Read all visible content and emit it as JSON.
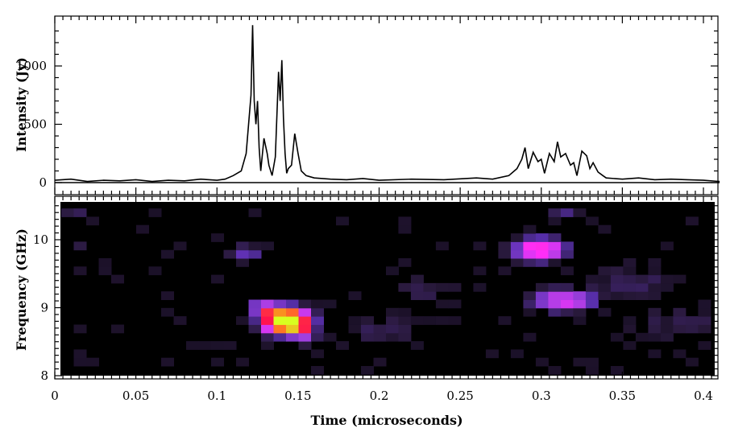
{
  "chart_data": [
    {
      "type": "line",
      "title": "",
      "xlabel": "",
      "ylabel": "Intensity (Jy)",
      "xlim": [
        0,
        0.41
      ],
      "ylim": [
        -60,
        1400
      ],
      "y_ticks": [
        0,
        500,
        1000
      ],
      "y_tick_labels": [
        "0",
        "500",
        "1000"
      ],
      "grid": false,
      "legend": "none",
      "series": [
        {
          "name": "",
          "color": "#000000",
          "x": [
            0.0,
            0.01,
            0.02,
            0.03,
            0.04,
            0.05,
            0.06,
            0.07,
            0.08,
            0.09,
            0.1,
            0.105,
            0.11,
            0.115,
            0.118,
            0.121,
            0.122,
            0.123,
            0.124,
            0.125,
            0.126,
            0.127,
            0.129,
            0.131,
            0.132,
            0.134,
            0.136,
            0.138,
            0.139,
            0.14,
            0.141,
            0.142,
            0.143,
            0.144,
            0.146,
            0.148,
            0.15,
            0.152,
            0.155,
            0.16,
            0.17,
            0.18,
            0.19,
            0.2,
            0.22,
            0.24,
            0.26,
            0.27,
            0.28,
            0.285,
            0.288,
            0.29,
            0.292,
            0.295,
            0.298,
            0.3,
            0.302,
            0.305,
            0.308,
            0.31,
            0.312,
            0.315,
            0.318,
            0.32,
            0.322,
            0.325,
            0.328,
            0.33,
            0.332,
            0.335,
            0.338,
            0.34,
            0.35,
            0.36,
            0.37,
            0.38,
            0.39,
            0.4,
            0.41
          ],
          "y": [
            20,
            30,
            10,
            20,
            15,
            25,
            10,
            20,
            15,
            30,
            20,
            30,
            60,
            100,
            250,
            750,
            1350,
            700,
            500,
            700,
            300,
            100,
            380,
            250,
            150,
            60,
            220,
            950,
            700,
            1050,
            550,
            250,
            80,
            120,
            150,
            420,
            250,
            100,
            60,
            40,
            30,
            25,
            35,
            20,
            30,
            25,
            40,
            30,
            60,
            120,
            200,
            300,
            120,
            260,
            180,
            200,
            80,
            250,
            180,
            350,
            220,
            250,
            150,
            170,
            60,
            270,
            230,
            120,
            170,
            90,
            60,
            40,
            30,
            40,
            25,
            30,
            25,
            20,
            10
          ]
        }
      ]
    },
    {
      "type": "heatmap",
      "title": "",
      "xlabel": "Time (microseconds)",
      "ylabel": "Frequency (GHz)",
      "xlim": [
        0,
        0.41
      ],
      "ylim": [
        7.95,
        10.6
      ],
      "x_ticks": [
        0,
        0.05,
        0.1,
        0.15,
        0.2,
        0.25,
        0.3,
        0.35,
        0.4
      ],
      "x_tick_labels": [
        "0",
        "0.05",
        "0.1",
        "0.15",
        "0.2",
        "0.25",
        "0.3",
        "0.35",
        "0.4"
      ],
      "y_ticks": [
        8,
        9,
        10
      ],
      "y_tick_labels": [
        "8",
        "9",
        "10"
      ],
      "colorscale": [
        "#000000",
        "#2a1a3e",
        "#5a30b0",
        "#a040e0",
        "#ff30ff",
        "#ff1050",
        "#ff8020",
        "#d8ff20"
      ],
      "regions": [
        {
          "x": 0.139,
          "y": 8.75,
          "sx": 0.012,
          "sy": 0.16,
          "value": 1.0
        },
        {
          "x": 0.125,
          "y": 8.95,
          "sx": 0.007,
          "sy": 0.1,
          "value": 0.35
        },
        {
          "x": 0.15,
          "y": 8.55,
          "sx": 0.006,
          "sy": 0.1,
          "value": 0.3
        },
        {
          "x": 0.295,
          "y": 9.8,
          "sx": 0.012,
          "sy": 0.13,
          "value": 0.55
        },
        {
          "x": 0.31,
          "y": 9.05,
          "sx": 0.015,
          "sy": 0.12,
          "value": 0.42
        },
        {
          "x": 0.115,
          "y": 9.75,
          "sx": 0.008,
          "sy": 0.08,
          "value": 0.18
        },
        {
          "x": 0.31,
          "y": 10.35,
          "sx": 0.006,
          "sy": 0.07,
          "value": 0.12
        },
        {
          "x": 0.17,
          "y": 10.5,
          "sx": 0.007,
          "sy": 0.06,
          "value": 0.1
        },
        {
          "x": 0.01,
          "y": 10.35,
          "sx": 0.006,
          "sy": 0.06,
          "value": 0.08
        },
        {
          "x": 0.01,
          "y": 9.8,
          "sx": 0.005,
          "sy": 0.07,
          "value": 0.06
        },
        {
          "x": 0.2,
          "y": 8.6,
          "sx": 0.015,
          "sy": 0.15,
          "value": 0.06
        },
        {
          "x": 0.35,
          "y": 9.3,
          "sx": 0.02,
          "sy": 0.2,
          "value": 0.06
        },
        {
          "x": 0.38,
          "y": 8.7,
          "sx": 0.02,
          "sy": 0.15,
          "value": 0.05
        },
        {
          "x": 0.225,
          "y": 9.2,
          "sx": 0.012,
          "sy": 0.15,
          "value": 0.05
        }
      ]
    }
  ]
}
